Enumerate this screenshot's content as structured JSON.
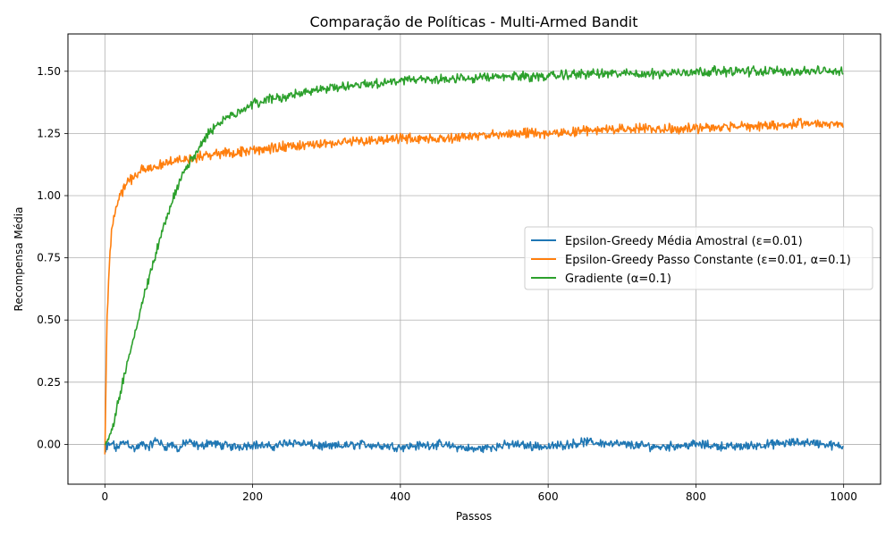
{
  "chart_data": {
    "type": "line",
    "title": "Comparação de Políticas - Multi-Armed Bandit",
    "xlabel": "Passos",
    "ylabel": "Recompensa Média",
    "xlim": [
      -50,
      1050
    ],
    "ylim": [
      -0.16,
      1.65
    ],
    "xticks": [
      0,
      200,
      400,
      600,
      800,
      1000
    ],
    "xtick_labels": [
      "0",
      "200",
      "400",
      "600",
      "800",
      "1000"
    ],
    "yticks": [
      0.0,
      0.25,
      0.5,
      0.75,
      1.0,
      1.25,
      1.5
    ],
    "ytick_labels": [
      "0.00",
      "0.25",
      "0.50",
      "0.75",
      "1.00",
      "1.25",
      "1.50"
    ],
    "grid": true,
    "legend_position": "center-right",
    "x": [
      0,
      1,
      2,
      3,
      5,
      7,
      10,
      15,
      20,
      30,
      40,
      50,
      60,
      70,
      80,
      90,
      100,
      110,
      120,
      130,
      140,
      150,
      175,
      200,
      225,
      250,
      275,
      300,
      350,
      400,
      450,
      500,
      550,
      600,
      650,
      700,
      750,
      800,
      850,
      900,
      950,
      999
    ],
    "series": [
      {
        "name": "Epsilon-Greedy Média Amostral (ε=0.01)",
        "color": "#1f77b4",
        "values": [
          0.0,
          -0.03,
          0.01,
          -0.02,
          0.0,
          -0.01,
          0.01,
          -0.02,
          0.0,
          0.01,
          -0.02,
          0.0,
          -0.01,
          0.02,
          -0.01,
          0.0,
          -0.02,
          0.01,
          0.0,
          -0.01,
          0.01,
          0.0,
          -0.01,
          0.0,
          -0.01,
          0.01,
          0.0,
          -0.01,
          0.0,
          -0.01,
          0.0,
          -0.02,
          0.0,
          -0.01,
          0.01,
          0.0,
          -0.01,
          0.0,
          -0.01,
          0.0,
          0.01,
          -0.01
        ]
      },
      {
        "name": "Epsilon-Greedy Passo Constante (ε=0.01, α=0.1)",
        "color": "#ff7f0e",
        "values": [
          -0.04,
          0.15,
          0.35,
          0.5,
          0.65,
          0.78,
          0.88,
          0.96,
          1.0,
          1.05,
          1.08,
          1.1,
          1.11,
          1.12,
          1.13,
          1.14,
          1.14,
          1.15,
          1.15,
          1.16,
          1.16,
          1.17,
          1.17,
          1.18,
          1.19,
          1.2,
          1.2,
          1.21,
          1.22,
          1.23,
          1.23,
          1.24,
          1.25,
          1.25,
          1.26,
          1.27,
          1.27,
          1.27,
          1.28,
          1.28,
          1.29,
          1.29
        ]
      },
      {
        "name": "Gradiente (α=0.1)",
        "color": "#2ca02c",
        "values": [
          0.0,
          0.0,
          0.01,
          0.02,
          0.03,
          0.04,
          0.06,
          0.12,
          0.2,
          0.32,
          0.44,
          0.56,
          0.67,
          0.78,
          0.88,
          0.97,
          1.05,
          1.11,
          1.16,
          1.21,
          1.25,
          1.28,
          1.33,
          1.37,
          1.39,
          1.4,
          1.42,
          1.43,
          1.45,
          1.46,
          1.47,
          1.47,
          1.48,
          1.48,
          1.49,
          1.49,
          1.49,
          1.5,
          1.5,
          1.5,
          1.5,
          1.5
        ]
      }
    ]
  }
}
